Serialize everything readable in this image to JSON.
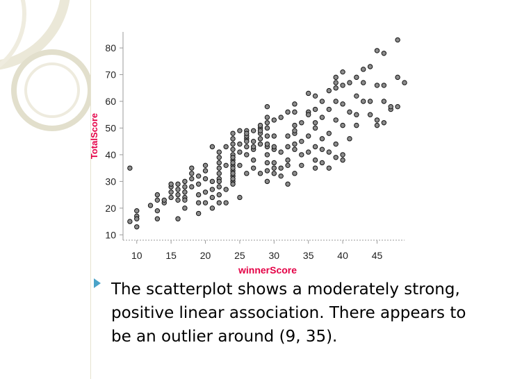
{
  "caption": "The scatterplot shows a moderately strong, positive linear association.  There appears to be an outlier around (9, 35).",
  "colors": {
    "axis_title": "#e40046",
    "bullet": "#4aa3c8",
    "point_fill": "#8c8c8c",
    "point_stroke": "#111111"
  },
  "chart_data": {
    "type": "scatter",
    "xlabel": "winnerScore",
    "ylabel": "TotalScore",
    "xlim": [
      8,
      49
    ],
    "ylim": [
      8,
      86
    ],
    "xticks": [
      10,
      15,
      20,
      25,
      30,
      35,
      40,
      45
    ],
    "yticks": [
      10,
      20,
      30,
      40,
      50,
      60,
      70,
      80
    ],
    "points": [
      [
        9,
        35
      ],
      [
        9,
        15
      ],
      [
        10,
        19
      ],
      [
        10,
        17
      ],
      [
        10,
        16
      ],
      [
        10,
        13
      ],
      [
        12,
        21
      ],
      [
        13,
        25
      ],
      [
        13,
        23
      ],
      [
        13,
        19
      ],
      [
        13,
        16
      ],
      [
        14,
        22
      ],
      [
        14,
        23
      ],
      [
        15,
        24
      ],
      [
        15,
        26
      ],
      [
        15,
        28
      ],
      [
        15,
        29
      ],
      [
        16,
        25
      ],
      [
        16,
        23
      ],
      [
        16,
        16
      ],
      [
        16,
        27
      ],
      [
        16,
        29
      ],
      [
        17,
        24
      ],
      [
        17,
        20
      ],
      [
        17,
        23
      ],
      [
        17,
        26
      ],
      [
        17,
        28
      ],
      [
        17,
        30
      ],
      [
        18,
        31
      ],
      [
        18,
        28
      ],
      [
        18,
        33
      ],
      [
        18,
        35
      ],
      [
        19,
        25
      ],
      [
        19,
        18
      ],
      [
        19,
        22
      ],
      [
        19,
        32
      ],
      [
        19,
        29
      ],
      [
        20,
        26
      ],
      [
        20,
        22
      ],
      [
        20,
        31
      ],
      [
        20,
        34
      ],
      [
        20,
        36
      ],
      [
        21,
        24
      ],
      [
        21,
        30
      ],
      [
        21,
        27
      ],
      [
        21,
        20
      ],
      [
        21,
        43
      ],
      [
        22,
        28
      ],
      [
        22,
        35
      ],
      [
        22,
        37
      ],
      [
        22,
        33
      ],
      [
        22,
        31
      ],
      [
        22,
        39
      ],
      [
        22,
        41
      ],
      [
        22,
        25
      ],
      [
        22,
        22
      ],
      [
        22,
        30
      ],
      [
        23,
        27
      ],
      [
        23,
        22
      ],
      [
        23,
        36
      ],
      [
        23,
        43
      ],
      [
        24,
        32
      ],
      [
        24,
        34
      ],
      [
        24,
        30
      ],
      [
        24,
        36
      ],
      [
        24,
        38
      ],
      [
        24,
        40
      ],
      [
        24,
        42
      ],
      [
        24,
        44
      ],
      [
        24,
        46
      ],
      [
        24,
        48
      ],
      [
        24,
        39
      ],
      [
        24,
        37
      ],
      [
        24,
        35
      ],
      [
        24,
        33
      ],
      [
        24,
        31
      ],
      [
        24,
        29
      ],
      [
        25,
        49
      ],
      [
        25,
        44
      ],
      [
        25,
        41
      ],
      [
        25,
        36
      ],
      [
        25,
        24
      ],
      [
        26,
        33
      ],
      [
        26,
        40
      ],
      [
        26,
        46
      ],
      [
        26,
        47
      ],
      [
        26,
        43
      ],
      [
        26,
        45
      ],
      [
        26,
        49
      ],
      [
        26,
        48
      ],
      [
        27,
        49
      ],
      [
        27,
        45
      ],
      [
        27,
        42
      ],
      [
        27,
        38
      ],
      [
        27,
        35
      ],
      [
        27,
        43
      ],
      [
        28,
        33
      ],
      [
        28,
        44
      ],
      [
        28,
        48
      ],
      [
        28,
        50
      ],
      [
        28,
        46
      ],
      [
        28,
        49
      ],
      [
        28,
        51
      ],
      [
        29,
        43
      ],
      [
        29,
        40
      ],
      [
        29,
        37
      ],
      [
        29,
        34
      ],
      [
        29,
        30
      ],
      [
        29,
        47
      ],
      [
        29,
        50
      ],
      [
        29,
        52
      ],
      [
        29,
        54
      ],
      [
        29,
        58
      ],
      [
        29,
        44
      ],
      [
        30,
        35
      ],
      [
        30,
        42
      ],
      [
        30,
        47
      ],
      [
        30,
        53
      ],
      [
        30,
        37
      ],
      [
        30,
        43
      ],
      [
        30,
        33
      ],
      [
        31,
        32
      ],
      [
        31,
        41
      ],
      [
        31,
        35
      ],
      [
        31,
        54
      ],
      [
        32,
        56
      ],
      [
        32,
        43
      ],
      [
        32,
        29
      ],
      [
        32,
        36
      ],
      [
        32,
        47
      ],
      [
        32,
        38
      ],
      [
        33,
        48
      ],
      [
        33,
        51
      ],
      [
        33,
        44
      ],
      [
        33,
        33
      ],
      [
        33,
        42
      ],
      [
        33,
        56
      ],
      [
        33,
        59
      ],
      [
        33,
        49
      ],
      [
        34,
        40
      ],
      [
        34,
        36
      ],
      [
        34,
        45
      ],
      [
        34,
        52
      ],
      [
        35,
        63
      ],
      [
        35,
        56
      ],
      [
        35,
        47
      ],
      [
        35,
        41
      ],
      [
        35,
        55
      ],
      [
        36,
        62
      ],
      [
        36,
        57
      ],
      [
        36,
        43
      ],
      [
        36,
        38
      ],
      [
        36,
        50
      ],
      [
        36,
        35
      ],
      [
        36,
        52
      ],
      [
        37,
        60
      ],
      [
        37,
        54
      ],
      [
        37,
        46
      ],
      [
        37,
        37
      ],
      [
        37,
        42
      ],
      [
        38,
        64
      ],
      [
        38,
        57
      ],
      [
        38,
        41
      ],
      [
        38,
        48
      ],
      [
        38,
        35
      ],
      [
        39,
        65
      ],
      [
        39,
        69
      ],
      [
        39,
        67
      ],
      [
        39,
        60
      ],
      [
        39,
        53
      ],
      [
        39,
        44
      ],
      [
        39,
        39
      ],
      [
        40,
        66
      ],
      [
        40,
        71
      ],
      [
        40,
        59
      ],
      [
        40,
        51
      ],
      [
        40,
        40
      ],
      [
        40,
        38
      ],
      [
        41,
        67
      ],
      [
        41,
        56
      ],
      [
        41,
        46
      ],
      [
        42,
        69
      ],
      [
        42,
        62
      ],
      [
        42,
        55
      ],
      [
        42,
        51
      ],
      [
        43,
        67
      ],
      [
        43,
        72
      ],
      [
        43,
        60
      ],
      [
        44,
        73
      ],
      [
        44,
        60
      ],
      [
        44,
        55
      ],
      [
        45,
        79
      ],
      [
        45,
        66
      ],
      [
        45,
        53
      ],
      [
        45,
        51
      ],
      [
        46,
        78
      ],
      [
        46,
        66
      ],
      [
        46,
        60
      ],
      [
        46,
        52
      ],
      [
        47,
        57
      ],
      [
        47,
        58
      ],
      [
        48,
        83
      ],
      [
        48,
        69
      ],
      [
        48,
        58
      ],
      [
        49,
        67
      ]
    ]
  }
}
